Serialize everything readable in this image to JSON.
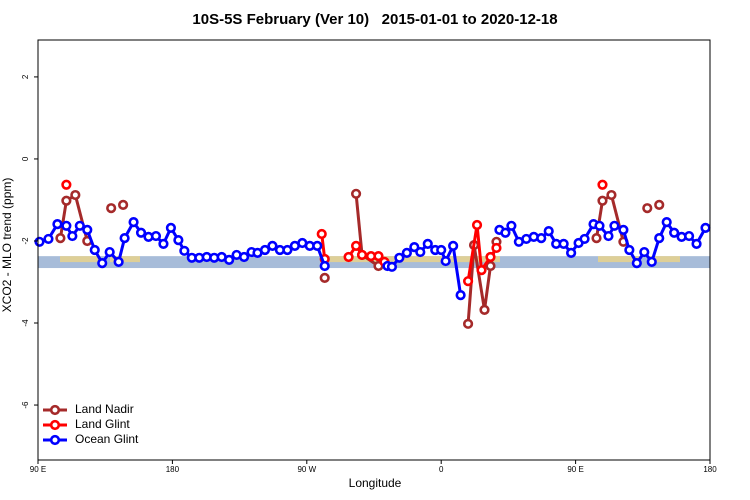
{
  "chart_data": {
    "type": "line",
    "title": "10S-5S February (Ver 10)   2015-01-01 to 2020-12-18",
    "xlabel": "Longitude",
    "ylabel": "XCO2 - MLO trend (ppm)",
    "xlim": [
      90,
      540
    ],
    "ylim": [
      -7.34,
      2.9
    ],
    "xticks": [
      {
        "value": 90,
        "label": "90 E"
      },
      180,
      {
        "value": 270,
        "label": "90 W"
      },
      {
        "value": 360,
        "label": "0"
      },
      {
        "value": 450,
        "label": "90 E"
      },
      {
        "value": 540,
        "label": "180"
      }
    ],
    "yticks": [
      2,
      0,
      -2,
      -4,
      -6
    ],
    "band": {
      "range": [
        -2.66,
        -2.37
      ],
      "color": "#a7bcd9"
    },
    "legend": "bottom-left",
    "series": [
      {
        "name": "Land Nadir",
        "color": "#a52a2a",
        "x": [
          105,
          109,
          115,
          123,
          130,
          139,
          143,
          147,
          200,
          282,
          290,
          303,
          307,
          318,
          330,
          378,
          382,
          389,
          393,
          397,
          430,
          464,
          468,
          474,
          482,
          490,
          498,
          502,
          506
        ],
        "values": [
          -1.93,
          -1.02,
          -0.88,
          -2.0,
          null,
          -1.2,
          null,
          -1.12,
          null,
          -2.9,
          null,
          -0.85,
          -2.34,
          -2.61,
          null,
          -4.02,
          -2.1,
          -3.68,
          -2.61,
          -2.02,
          null,
          -1.93,
          -1.02,
          -0.88,
          -2.02,
          null,
          -1.2,
          null,
          -1.12
        ]
      },
      {
        "name": "Land Glint",
        "color": "#ff0000",
        "x": [
          109,
          200,
          280,
          282,
          290,
          298,
          303,
          307,
          313,
          318,
          322,
          350,
          378,
          384,
          387,
          393,
          397,
          430,
          468
        ],
        "values": [
          -0.63,
          null,
          -1.83,
          -2.44,
          null,
          -2.39,
          -2.12,
          -2.34,
          -2.37,
          -2.37,
          -2.51,
          null,
          -2.98,
          -1.61,
          -2.71,
          -2.39,
          -2.17,
          null,
          -0.63
        ]
      },
      {
        "name": "Ocean Glint",
        "color": "#0000ff",
        "x": [
          91,
          97,
          103,
          109,
          113,
          118,
          123,
          128,
          133,
          138,
          144,
          148,
          154,
          159,
          164,
          169,
          174,
          179,
          184,
          188,
          193,
          198,
          203,
          208,
          213,
          218,
          223,
          228,
          233,
          237,
          242,
          247,
          252,
          257,
          262,
          267,
          272,
          277,
          282,
          320,
          324,
          327,
          332,
          337,
          342,
          346,
          351,
          356,
          360,
          363,
          368,
          373,
          385,
          399,
          403,
          407,
          412,
          417,
          422,
          427,
          432,
          437,
          442,
          447,
          452,
          456,
          462,
          466,
          472,
          476,
          482,
          486,
          491,
          496,
          501,
          506,
          511,
          516,
          521,
          526,
          531,
          537
        ],
        "values": [
          -2.02,
          -1.95,
          -1.59,
          -1.63,
          -1.88,
          -1.63,
          -1.73,
          -2.22,
          -2.54,
          -2.27,
          -2.51,
          -1.93,
          -1.54,
          -1.8,
          -1.9,
          -1.88,
          -2.07,
          -1.68,
          -1.98,
          -2.24,
          -2.41,
          -2.41,
          -2.39,
          -2.41,
          -2.39,
          -2.46,
          -2.34,
          -2.39,
          -2.27,
          -2.29,
          -2.22,
          -2.12,
          -2.22,
          -2.22,
          -2.12,
          -2.05,
          -2.12,
          -2.12,
          -2.61,
          null,
          -2.61,
          -2.63,
          -2.41,
          -2.29,
          -2.15,
          -2.27,
          -2.07,
          -2.22,
          -2.22,
          -2.49,
          -2.12,
          -3.32,
          null,
          -1.73,
          -1.8,
          -1.63,
          -2.02,
          -1.95,
          -1.9,
          -1.93,
          -1.76,
          -2.07,
          -2.07,
          -2.29,
          -2.05,
          -1.95,
          -1.59,
          -1.63,
          -1.88,
          -1.63,
          -1.73,
          -2.22,
          -2.54,
          -2.27,
          -2.51,
          -1.93,
          -1.54,
          -1.8,
          -1.9,
          -1.88,
          -2.07,
          -1.68
        ]
      }
    ]
  }
}
